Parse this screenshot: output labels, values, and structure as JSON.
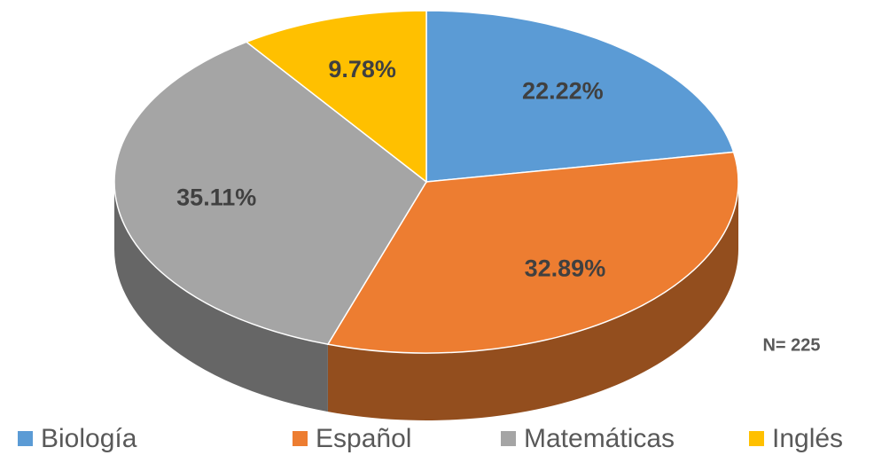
{
  "chart_data": {
    "type": "pie",
    "categories": [
      "Biología",
      "Español",
      "Matemáticas",
      "Inglés"
    ],
    "values": [
      22.22,
      32.89,
      35.11,
      9.78
    ],
    "value_labels": [
      "22.22%",
      "32.89%",
      "35.11%",
      "9.78%"
    ],
    "colors": [
      "#5b9bd5",
      "#ed7d31",
      "#a5a5a5",
      "#ffc000"
    ],
    "annotation": "N= 225",
    "legend": "bottom"
  }
}
